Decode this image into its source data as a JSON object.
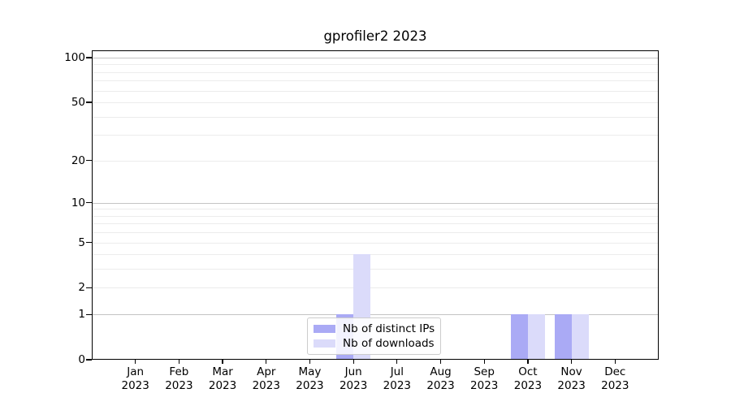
{
  "chart_data": {
    "type": "bar",
    "title": "gprofiler2 2023",
    "categories": [
      "Jan 2023",
      "Feb 2023",
      "Mar 2023",
      "Apr 2023",
      "May 2023",
      "Jun 2023",
      "Jul 2023",
      "Aug 2023",
      "Sep 2023",
      "Oct 2023",
      "Nov 2023",
      "Dec 2023"
    ],
    "series": [
      {
        "name": "Nb of distinct IPs",
        "color": "#aaaaf5",
        "values": [
          0,
          0,
          0,
          0,
          0,
          1,
          0,
          0,
          0,
          1,
          1,
          0
        ]
      },
      {
        "name": "Nb of downloads",
        "color": "#dbdbfa",
        "values": [
          0,
          0,
          0,
          0,
          0,
          4,
          0,
          0,
          0,
          1,
          1,
          0
        ]
      }
    ],
    "xlabel": "",
    "ylabel": "",
    "y_scale": "log1p",
    "ylim": [
      0,
      100
    ],
    "y_ticks": [
      0,
      1,
      2,
      5,
      10,
      20,
      50,
      100
    ],
    "y_major_gridlines": [
      1,
      10,
      100
    ],
    "y_minor_gridlines": [
      2,
      3,
      4,
      5,
      6,
      7,
      8,
      9,
      20,
      30,
      40,
      50,
      60,
      70,
      80,
      90
    ],
    "grid": true,
    "legend_position": "lower center"
  },
  "colors": {
    "axis": "#000000",
    "grid_major": "#c4c4c4",
    "grid_minor": "#ececec",
    "legend_border": "#cccccc",
    "background": "#ffffff"
  }
}
